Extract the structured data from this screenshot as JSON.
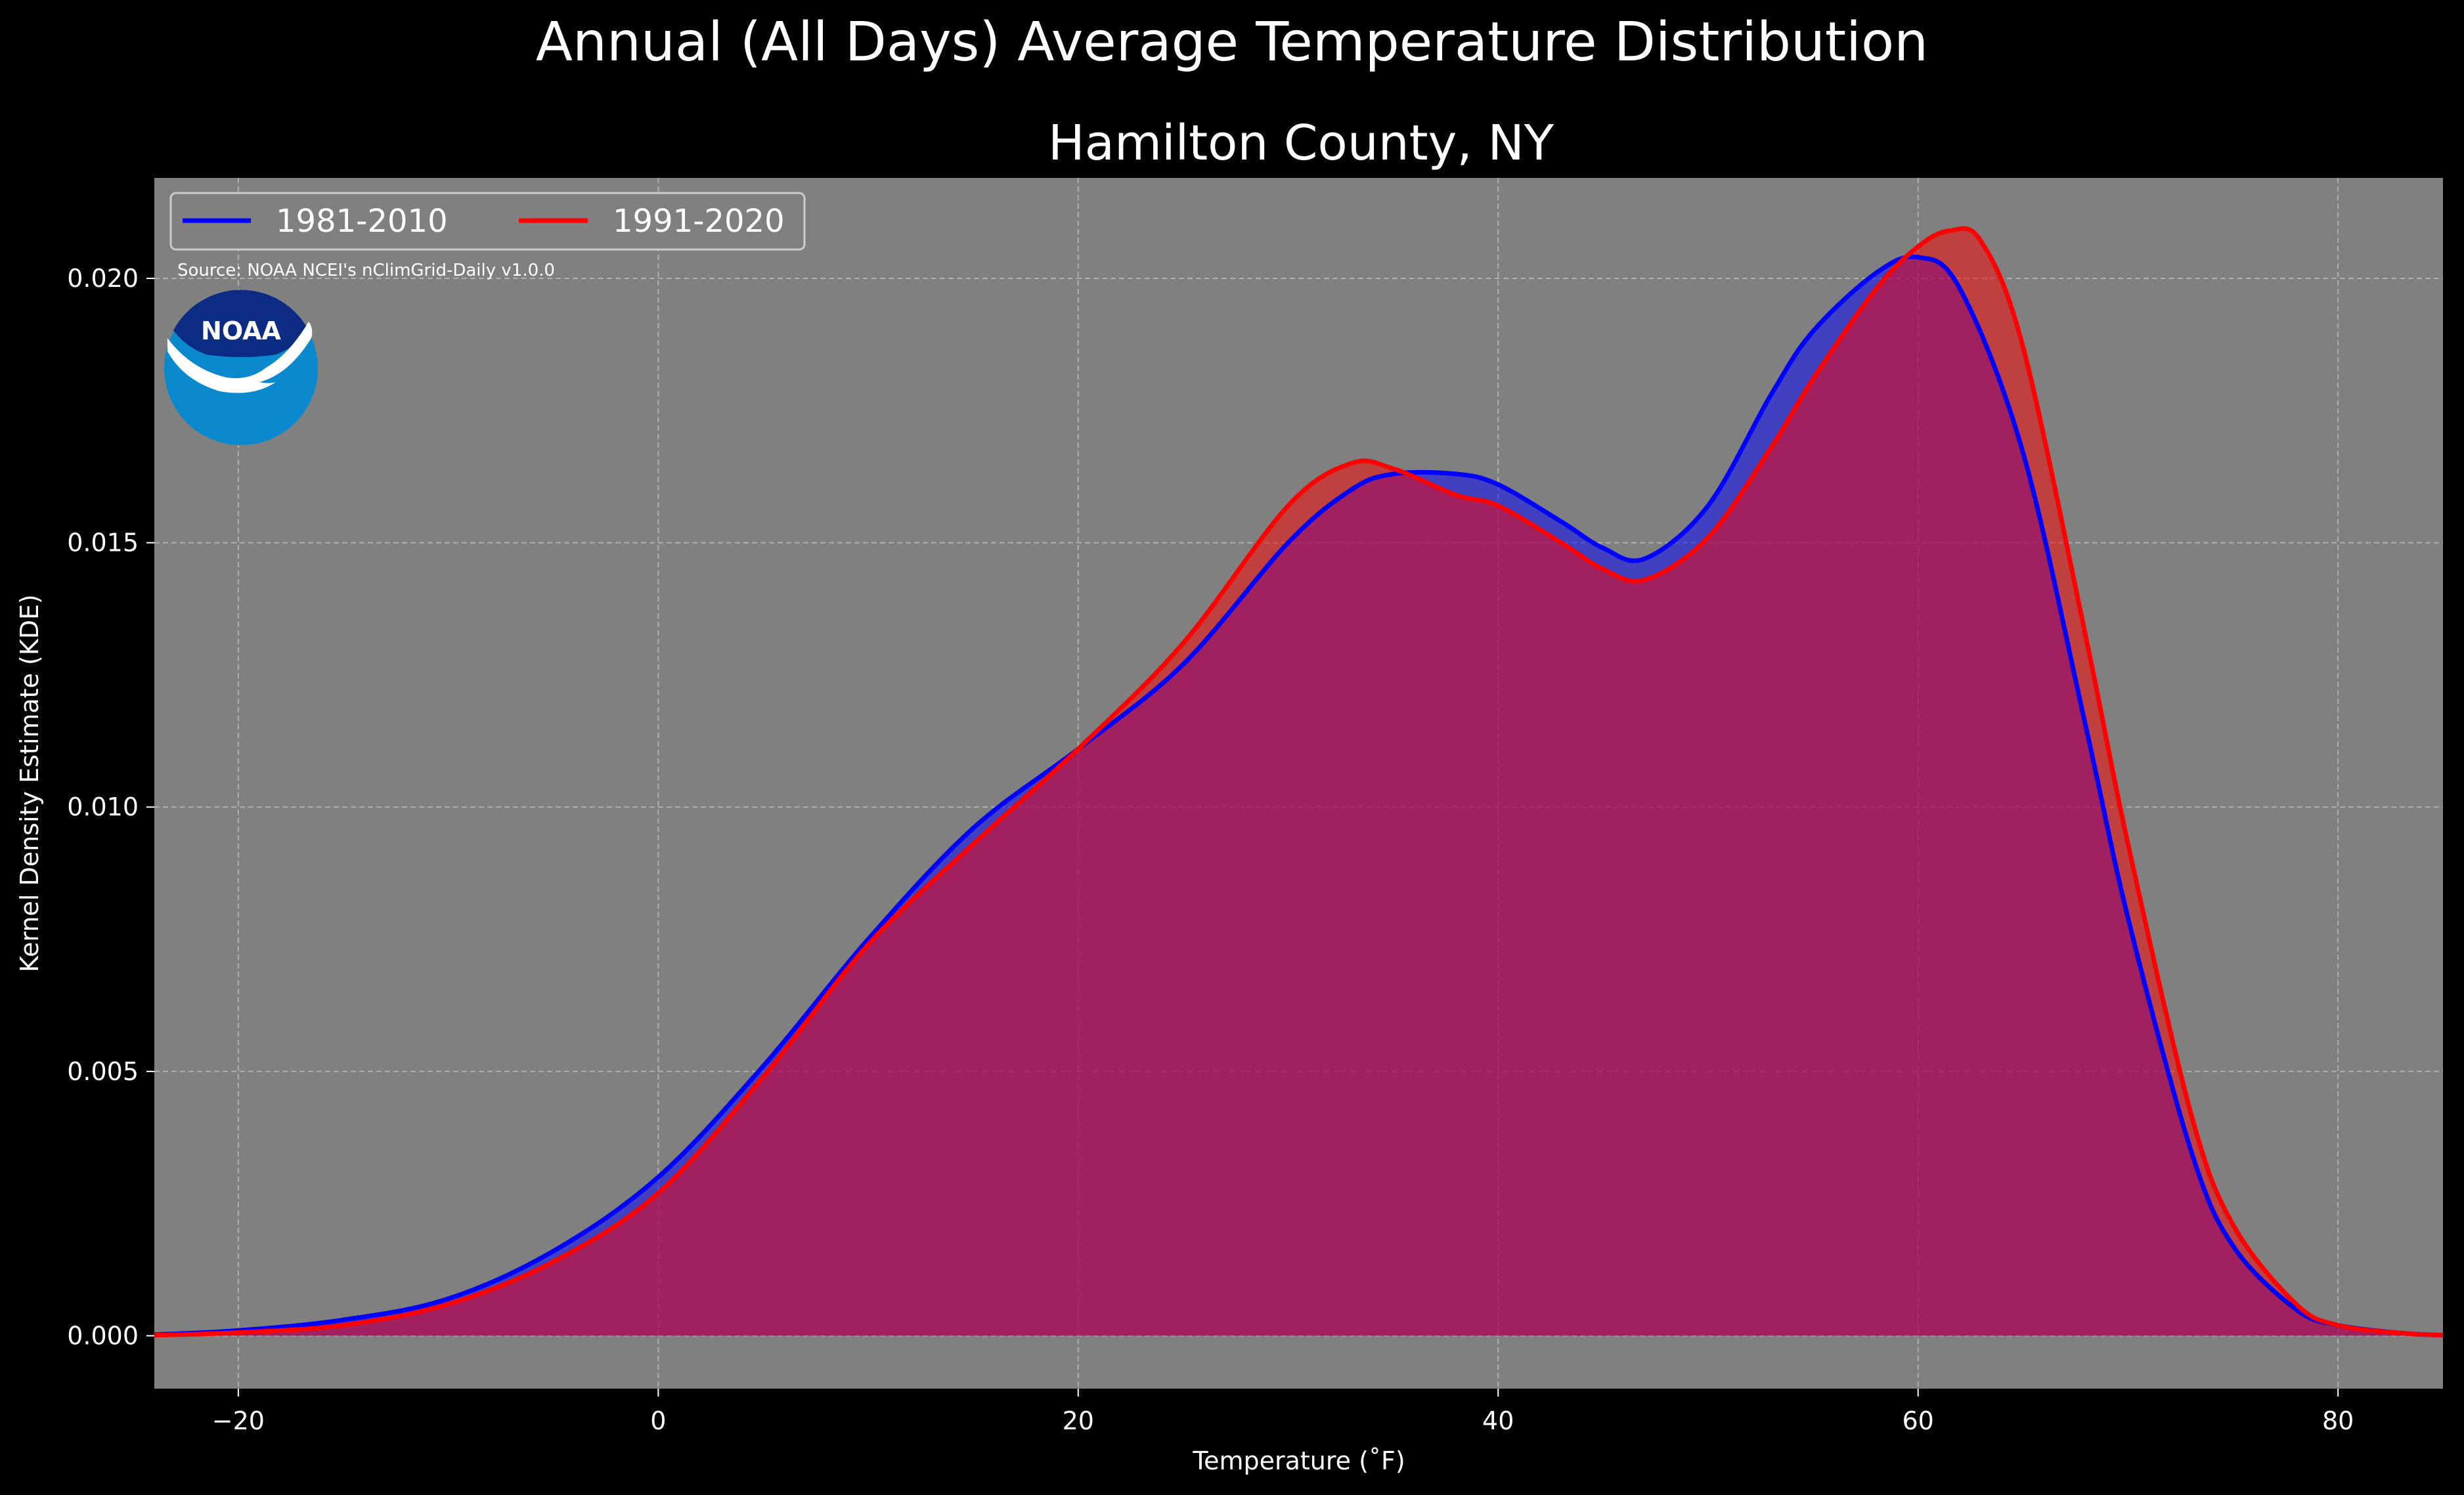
{
  "chart_data": {
    "type": "area",
    "suptitle": "Annual (All Days) Average Temperature Distribution",
    "title": "Hamilton County, NY",
    "xlabel": "Temperature (˚F)",
    "ylabel": "Kernel Density Estimate (KDE)",
    "xlim": [
      -24,
      85
    ],
    "ylim": [
      -0.001,
      0.0219
    ],
    "xticks": [
      -20,
      0,
      20,
      40,
      60,
      80
    ],
    "xtick_labels": [
      "−20",
      "0",
      "20",
      "40",
      "60",
      "80"
    ],
    "yticks": [
      0.0,
      0.005,
      0.01,
      0.015,
      0.02
    ],
    "ytick_labels": [
      "0.000",
      "0.005",
      "0.010",
      "0.015",
      "0.020"
    ],
    "grid": true,
    "legend_position": "top-left",
    "background_color": "#000000",
    "plot_background_color": "#808080",
    "series": [
      {
        "name": "1981-2010",
        "color": "#0000ff",
        "x": [
          -24,
          -20,
          -15,
          -10,
          -5,
          0,
          5,
          10,
          15,
          20,
          25,
          30,
          33,
          35,
          38,
          40,
          43,
          45,
          47,
          50,
          53,
          55,
          58,
          60,
          62,
          65,
          68,
          70,
          73,
          75,
          78,
          80,
          83,
          85
        ],
        "y": [
          2e-05,
          0.0001,
          0.0003,
          0.0007,
          0.0016,
          0.003,
          0.0051,
          0.0075,
          0.0096,
          0.0111,
          0.0127,
          0.015,
          0.016,
          0.0163,
          0.0163,
          0.0161,
          0.0154,
          0.0149,
          0.0147,
          0.0157,
          0.0178,
          0.019,
          0.0201,
          0.0204,
          0.0198,
          0.0167,
          0.0115,
          0.0079,
          0.0035,
          0.0017,
          0.0005,
          0.0002,
          5e-05,
          1e-05
        ]
      },
      {
        "name": "1991-2020",
        "color": "#ff0000",
        "x": [
          -24,
          -20,
          -15,
          -10,
          -5,
          0,
          5,
          10,
          15,
          20,
          25,
          30,
          33,
          35,
          38,
          40,
          43,
          45,
          47,
          50,
          53,
          55,
          58,
          60,
          61.5,
          63,
          65,
          68,
          70,
          73,
          75,
          78,
          80,
          83,
          85
        ],
        "y": [
          1e-05,
          6e-05,
          0.0002,
          0.0006,
          0.0014,
          0.0027,
          0.0049,
          0.0074,
          0.0093,
          0.0111,
          0.0131,
          0.0157,
          0.0165,
          0.0164,
          0.0159,
          0.0157,
          0.015,
          0.0145,
          0.0143,
          0.0151,
          0.0168,
          0.0181,
          0.0198,
          0.0206,
          0.0209,
          0.0207,
          0.0187,
          0.0132,
          0.0093,
          0.0042,
          0.0021,
          0.0006,
          0.0002,
          5e-05,
          1e-05
        ]
      }
    ],
    "annotations": {
      "source": "Source: NOAA NCEI's nClimGrid-Daily v1.0.0",
      "logo_text": "NOAA"
    }
  }
}
